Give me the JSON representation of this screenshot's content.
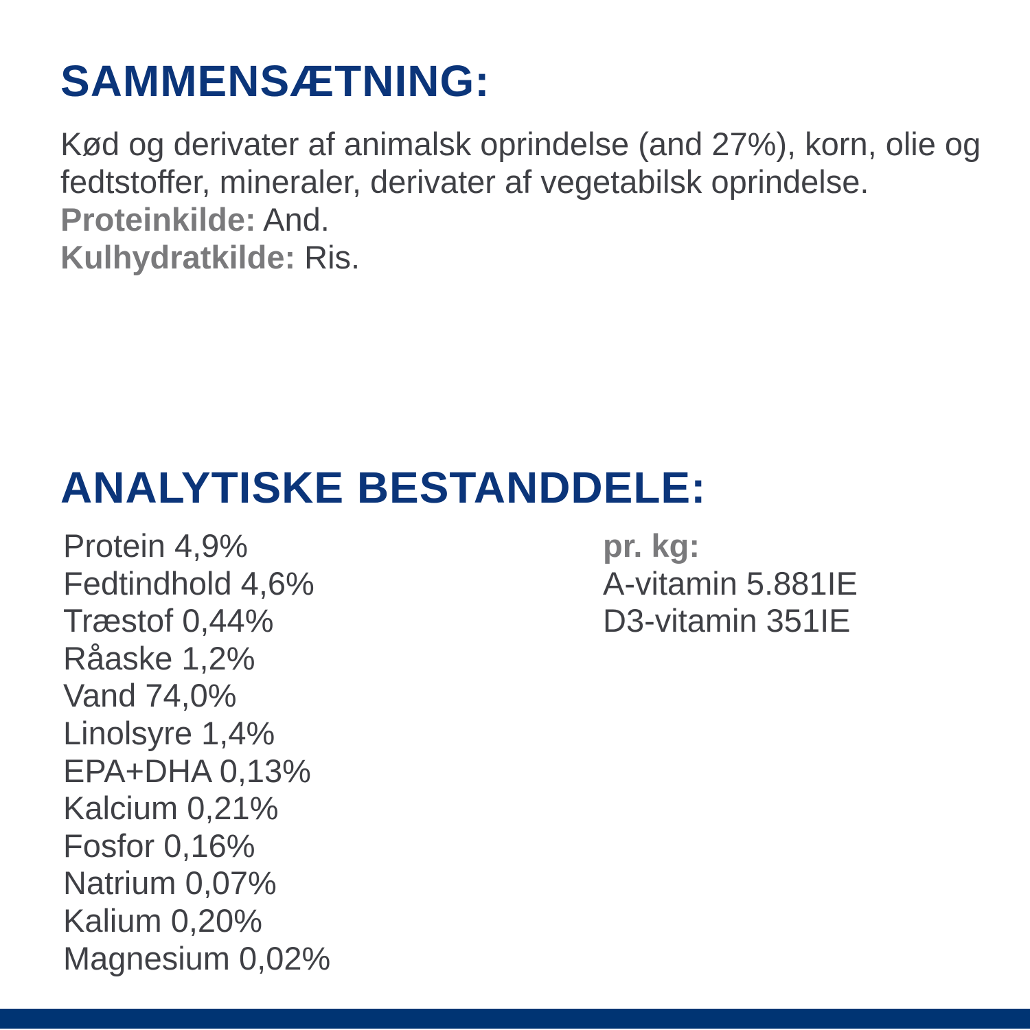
{
  "composition": {
    "heading": "SAMMENSÆTNING:",
    "text": "Kød og derivater af animalsk oprindelse (and 27%), korn, olie og fedtstoffer, mineraler, derivater af vegetabilsk oprindelse.",
    "protein_source_label": "Proteinkilde:",
    "protein_source_value": " And.",
    "carb_source_label": "Kulhydratkilde:",
    "carb_source_value": " Ris."
  },
  "analytics": {
    "heading": "ANALYTISKE BESTANDDELE:",
    "items": [
      {
        "name": "Protein",
        "value": "4,9%",
        "text": "Protein 4,9%"
      },
      {
        "name": "Fedtindhold",
        "value": "4,6%",
        "text": "Fedtindhold 4,6%"
      },
      {
        "name": "Træstof",
        "value": "0,44%",
        "text": "Træstof 0,44%"
      },
      {
        "name": "Råaske",
        "value": "1,2%",
        "text": "Råaske 1,2%"
      },
      {
        "name": "Vand",
        "value": "74,0%",
        "text": "Vand 74,0%"
      },
      {
        "name": "Linolsyre",
        "value": "1,4%",
        "text": "Linolsyre 1,4%"
      },
      {
        "name": "EPA+DHA",
        "value": "0,13%",
        "text": "EPA+DHA 0,13%"
      },
      {
        "name": "Kalcium",
        "value": "0,21%",
        "text": "Kalcium 0,21%"
      },
      {
        "name": "Fosfor",
        "value": "0,16%",
        "text": "Fosfor 0,16%"
      },
      {
        "name": "Natrium",
        "value": "0,07%",
        "text": "Natrium 0,07%"
      },
      {
        "name": "Kalium",
        "value": "0,20%",
        "text": "Kalium 0,20%"
      },
      {
        "name": "Magnesium",
        "value": "0,02%",
        "text": "Magnesium 0,02%"
      }
    ],
    "per_kg": {
      "title": "pr. kg:",
      "items": [
        {
          "name": "A-vitamin",
          "value": "5.881IE",
          "text": "A-vitamin 5.881IE"
        },
        {
          "name": "D3-vitamin",
          "value": "351IE",
          "text": "D3-vitamin 351IE"
        }
      ]
    }
  },
  "colors": {
    "heading": "#0b357a",
    "body_text": "#3f4045",
    "label_text": "#7a7a7c",
    "footer_bar": "#003473",
    "background": "#ffffff"
  }
}
